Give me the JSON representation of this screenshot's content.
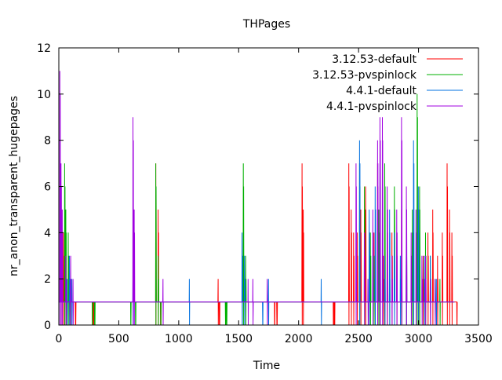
{
  "chart_data": {
    "type": "line",
    "title": "THPages",
    "xlabel": "Time",
    "ylabel": "nr_anon_transparent_hugepages",
    "xlim": [
      0,
      3500
    ],
    "ylim": [
      0,
      12
    ],
    "xticks": [
      0,
      500,
      1000,
      1500,
      2000,
      2500,
      3000,
      3500
    ],
    "yticks": [
      0,
      2,
      4,
      6,
      8,
      10,
      12
    ],
    "grid": false,
    "legend_position": "top-right",
    "baseline": {
      "value": 1,
      "x_range": [
        0,
        3300
      ]
    },
    "series": [
      {
        "name": "3.12.53-default",
        "color": "#ff0000",
        "spikes": [
          [
            20,
            6
          ],
          [
            40,
            4
          ],
          [
            60,
            1
          ],
          [
            90,
            1
          ],
          [
            140,
            0
          ],
          [
            280,
            1
          ],
          [
            290,
            0
          ],
          [
            810,
            7
          ],
          [
            830,
            5
          ],
          [
            850,
            0
          ],
          [
            1330,
            2
          ],
          [
            1340,
            0
          ],
          [
            1800,
            1
          ],
          [
            1820,
            0
          ],
          [
            2030,
            7
          ],
          [
            2040,
            5
          ],
          [
            2290,
            1
          ],
          [
            2300,
            0
          ],
          [
            2420,
            7
          ],
          [
            2440,
            5
          ],
          [
            2460,
            4
          ],
          [
            2490,
            4
          ],
          [
            2520,
            5
          ],
          [
            2560,
            6
          ],
          [
            2590,
            4
          ],
          [
            2630,
            4
          ],
          [
            2660,
            7
          ],
          [
            2680,
            5
          ],
          [
            2710,
            3
          ],
          [
            2740,
            5
          ],
          [
            2780,
            4
          ],
          [
            2820,
            4
          ],
          [
            2860,
            5
          ],
          [
            2900,
            4
          ],
          [
            2950,
            4
          ],
          [
            3000,
            5
          ],
          [
            3040,
            3
          ],
          [
            3080,
            4
          ],
          [
            3120,
            5
          ],
          [
            3160,
            3
          ],
          [
            3200,
            4
          ],
          [
            3240,
            7
          ],
          [
            3260,
            5
          ],
          [
            3280,
            4
          ],
          [
            3320,
            1
          ]
        ]
      },
      {
        "name": "3.12.53-pvspinlock",
        "color": "#00b000",
        "spikes": [
          [
            50,
            7
          ],
          [
            60,
            5
          ],
          [
            80,
            4
          ],
          [
            100,
            2
          ],
          [
            280,
            1
          ],
          [
            300,
            0
          ],
          [
            600,
            1
          ],
          [
            640,
            1
          ],
          [
            810,
            7
          ],
          [
            830,
            3
          ],
          [
            850,
            1
          ],
          [
            1390,
            1
          ],
          [
            1400,
            0
          ],
          [
            1540,
            7
          ],
          [
            1560,
            3
          ],
          [
            2510,
            7
          ],
          [
            2550,
            6
          ],
          [
            2600,
            4
          ],
          [
            2630,
            3
          ],
          [
            2670,
            5
          ],
          [
            2720,
            7
          ],
          [
            2760,
            3
          ],
          [
            2800,
            6
          ],
          [
            2860,
            3
          ],
          [
            2900,
            4
          ],
          [
            2950,
            5
          ],
          [
            2990,
            10
          ],
          [
            3010,
            6
          ],
          [
            3060,
            4
          ],
          [
            3100,
            3
          ],
          [
            3140,
            2
          ],
          [
            3180,
            2
          ]
        ]
      },
      {
        "name": "4.4.1-default",
        "color": "#0070e0",
        "spikes": [
          [
            70,
            2
          ],
          [
            90,
            3
          ],
          [
            110,
            2
          ],
          [
            620,
            2
          ],
          [
            1090,
            2
          ],
          [
            1530,
            4
          ],
          [
            1550,
            3
          ],
          [
            1700,
            1
          ],
          [
            1750,
            2
          ],
          [
            2190,
            2
          ],
          [
            2510,
            8
          ],
          [
            2590,
            5
          ],
          [
            2640,
            6
          ],
          [
            2680,
            7
          ],
          [
            2720,
            3
          ],
          [
            2760,
            5
          ],
          [
            2800,
            4
          ],
          [
            2850,
            3
          ],
          [
            2900,
            5
          ],
          [
            2960,
            8
          ],
          [
            3000,
            6
          ],
          [
            3050,
            3
          ],
          [
            3100,
            3
          ],
          [
            3150,
            2
          ]
        ]
      },
      {
        "name": "4.4.1-pvspinlock",
        "color": "#a000e0",
        "spikes": [
          [
            10,
            11
          ],
          [
            20,
            7
          ],
          [
            30,
            5
          ],
          [
            60,
            3
          ],
          [
            100,
            3
          ],
          [
            120,
            2
          ],
          [
            620,
            9
          ],
          [
            630,
            5
          ],
          [
            870,
            2
          ],
          [
            1580,
            2
          ],
          [
            1620,
            2
          ],
          [
            1740,
            2
          ],
          [
            2480,
            7
          ],
          [
            2550,
            4
          ],
          [
            2580,
            2
          ],
          [
            2620,
            5
          ],
          [
            2660,
            8
          ],
          [
            2680,
            9
          ],
          [
            2700,
            9
          ],
          [
            2740,
            6
          ],
          [
            2780,
            3
          ],
          [
            2820,
            5
          ],
          [
            2860,
            9
          ],
          [
            2900,
            6
          ],
          [
            2940,
            4
          ],
          [
            2980,
            5
          ],
          [
            3030,
            3
          ],
          [
            3060,
            3
          ],
          [
            3100,
            2
          ],
          [
            3140,
            2
          ]
        ]
      }
    ]
  }
}
